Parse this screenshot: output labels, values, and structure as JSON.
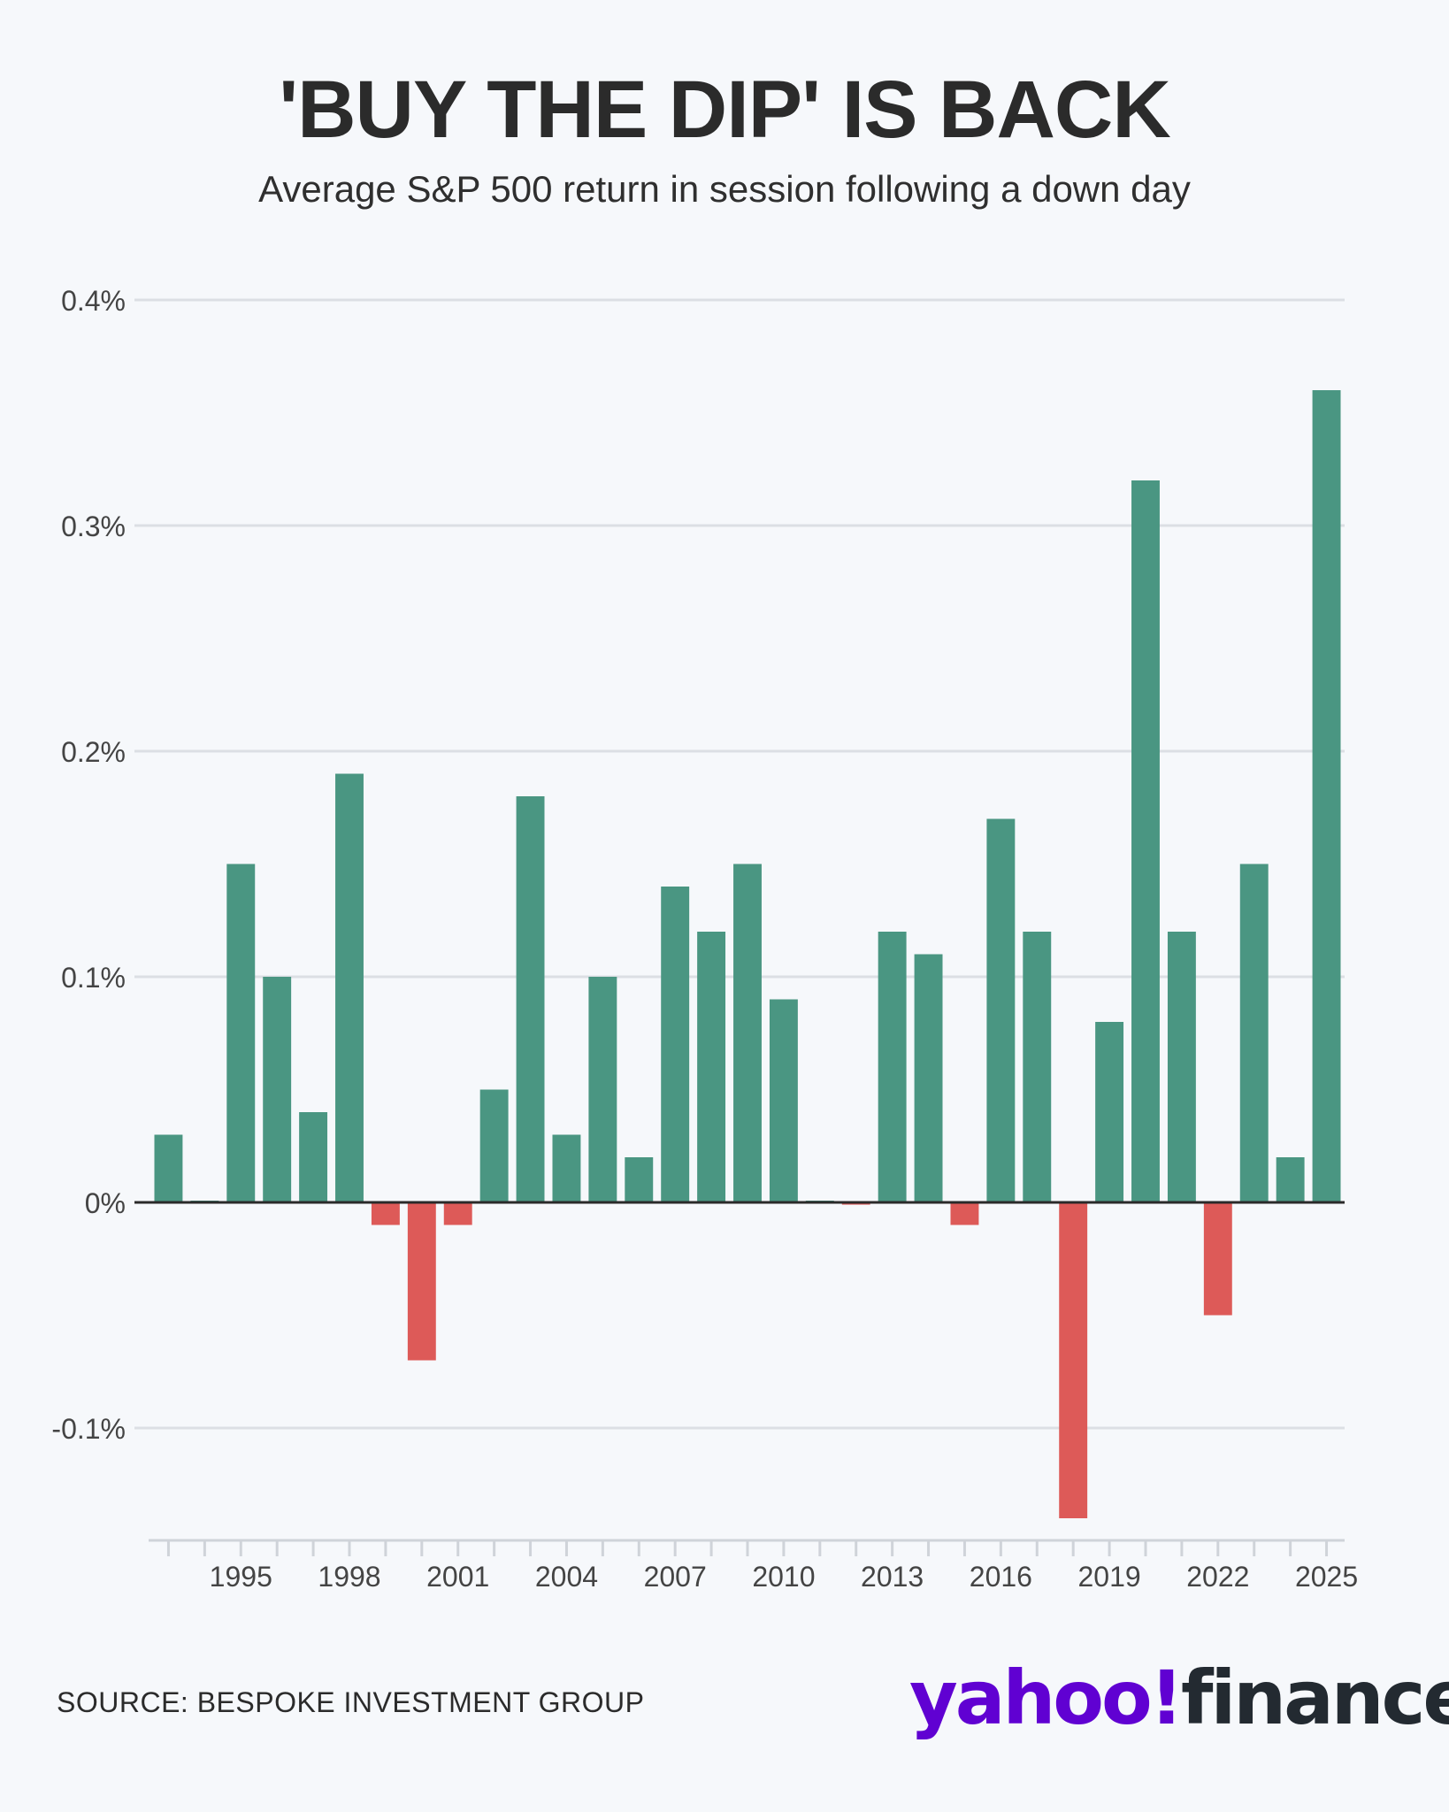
{
  "chart_data": {
    "type": "bar",
    "title": "'BUY THE DIP' IS BACK",
    "subtitle": "Average S&P 500 return in session following a down day",
    "categories": [
      1993,
      1994,
      1995,
      1996,
      1997,
      1998,
      1999,
      2000,
      2001,
      2002,
      2003,
      2004,
      2005,
      2006,
      2007,
      2008,
      2009,
      2010,
      2011,
      2012,
      2013,
      2014,
      2015,
      2016,
      2017,
      2018,
      2019,
      2020,
      2021,
      2022,
      2023,
      2024,
      2025
    ],
    "values": [
      0.03,
      0.0005,
      0.15,
      0.1,
      0.04,
      0.19,
      -0.01,
      -0.07,
      -0.01,
      0.05,
      0.18,
      0.03,
      0.1,
      0.02,
      0.14,
      0.12,
      0.15,
      0.09,
      0.0005,
      -0.001,
      0.12,
      0.11,
      -0.01,
      0.17,
      0.12,
      -0.14,
      0.08,
      0.32,
      0.12,
      -0.05,
      0.15,
      0.02,
      0.36
    ],
    "xtick_labels": [
      "1995",
      "1998",
      "2001",
      "2004",
      "2007",
      "2010",
      "2013",
      "2016",
      "2019",
      "2022",
      "2025"
    ],
    "ytick_values": [
      0.4,
      0.3,
      0.2,
      0.1,
      0,
      -0.1
    ],
    "ytick_labels": [
      "0.4%",
      "0.3%",
      "0.2%",
      "0.1%",
      "0%",
      "-0.1%"
    ],
    "ylim": [
      -0.15,
      0.4
    ],
    "grid": true,
    "xlabel": "",
    "ylabel": "",
    "positive_color": "#4a9682",
    "negative_color": "#dd5a58"
  },
  "source": "SOURCE: BESPOKE INVESTMENT GROUP",
  "logo": {
    "yahoo": "yahoo!",
    "finance": "finance"
  }
}
